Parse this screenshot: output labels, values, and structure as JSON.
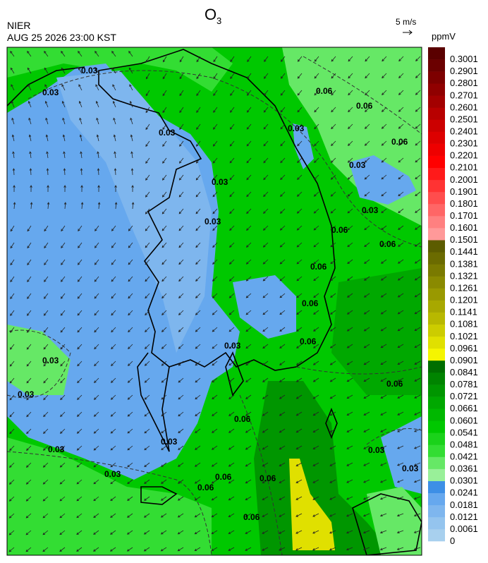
{
  "header": {
    "title": {
      "text": "O",
      "subscript": "3"
    },
    "agency": "NIER",
    "timestamp": "AUG 25 2026 23:00 KST",
    "wind_scale": "5 m/s"
  },
  "colorbar": {
    "unit": "ppmV",
    "labels": [
      "0",
      "0.0061",
      "0.0121",
      "0.0181",
      "0.0241",
      "0.0301",
      "0.0361",
      "0.0421",
      "0.0481",
      "0.0541",
      "0.0601",
      "0.0661",
      "0.0721",
      "0.0781",
      "0.0841",
      "0.0901",
      "0.0961",
      "0.1021",
      "0.1081",
      "0.1141",
      "0.1201",
      "0.1261",
      "0.1321",
      "0.1381",
      "0.1441",
      "0.1501",
      "0.1601",
      "0.1701",
      "0.1801",
      "0.1901",
      "0.2001",
      "0.2101",
      "0.2201",
      "0.2301",
      "0.2401",
      "0.2501",
      "0.2601",
      "0.2701",
      "0.2801",
      "0.2901",
      "0.3001"
    ],
    "colors": [
      "#a8d0ee",
      "#94c4ee",
      "#7eb6ee",
      "#66a8ee",
      "#3d8fe6",
      "#99f099",
      "#66e866",
      "#33dd33",
      "#1ad21a",
      "#00c800",
      "#00b800",
      "#00a800",
      "#009600",
      "#008400",
      "#006e00",
      "#f5f500",
      "#e0e000",
      "#cccc00",
      "#b8b800",
      "#a8a800",
      "#999900",
      "#8a8a00",
      "#7a7a00",
      "#6b6b00",
      "#5c5c00",
      "#ff9999",
      "#ff8080",
      "#ff6666",
      "#ff4d4d",
      "#ff3333",
      "#ff1a1a",
      "#ff0000",
      "#ee0000",
      "#dd0000",
      "#cc0000",
      "#b80000",
      "#a30000",
      "#900000",
      "#7d0000",
      "#6b0000",
      "#5a0000"
    ]
  },
  "contour_labels": [
    "0.03",
    "0.03",
    "0.06",
    "0.06",
    "0.06",
    "0.03",
    "0.03",
    "0.03",
    "0.06",
    "0.06",
    "0.06",
    "0.03",
    "0.03",
    "0.03",
    "0.03",
    "0.03",
    "0.03",
    "0.03",
    "0.03",
    "0.06",
    "0.06",
    "0.06",
    "0.06",
    "0.06",
    "0.06",
    "0.06",
    "0.03",
    "0.06",
    "0.03",
    "0.03"
  ]
}
